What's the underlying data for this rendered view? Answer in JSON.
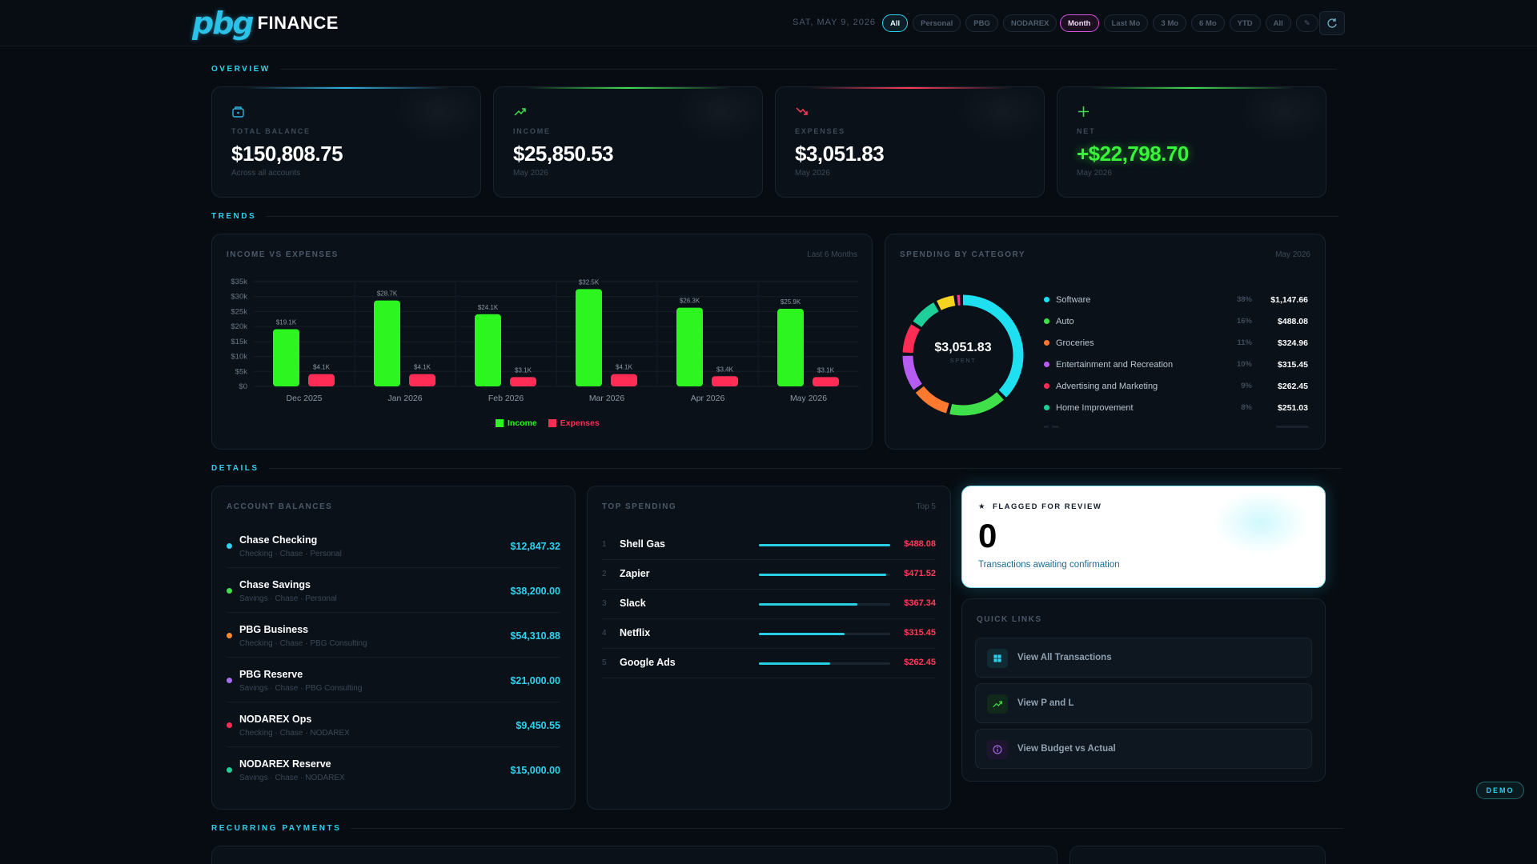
{
  "app": {
    "logo_mark": "pbg",
    "logo_text": "FINANCE"
  },
  "header": {
    "date": "SAT, MAY 9, 2026",
    "entity_filters": [
      {
        "label": "All",
        "active": true
      },
      {
        "label": "Personal",
        "active": false
      },
      {
        "label": "PBG",
        "active": false
      },
      {
        "label": "NODAREX",
        "active": false
      }
    ],
    "period_filters": [
      {
        "label": "Month",
        "active": true
      },
      {
        "label": "Last Mo",
        "active": false
      },
      {
        "label": "3 Mo",
        "active": false
      },
      {
        "label": "6 Mo",
        "active": false
      },
      {
        "label": "YTD",
        "active": false
      },
      {
        "label": "All",
        "active": false
      },
      {
        "label": "✎",
        "active": false
      }
    ],
    "refresh_icon": "refresh-icon"
  },
  "sections": {
    "overview": "OVERVIEW",
    "trends": "TRENDS",
    "details": "DETAILS",
    "recurring": "RECURRING PAYMENTS"
  },
  "overview": [
    {
      "label": "TOTAL BALANCE",
      "value": "$150,808.75",
      "sub": "Across all accounts",
      "icon": "wallet-icon",
      "accent": "#2fb4e0"
    },
    {
      "label": "INCOME",
      "value": "$25,850.53",
      "sub": "May 2026",
      "icon": "trend-up-icon",
      "accent": "#3fe04a"
    },
    {
      "label": "EXPENSES",
      "value": "$3,051.83",
      "sub": "May 2026",
      "icon": "trend-down-icon",
      "accent": "#ff3d5a"
    },
    {
      "label": "NET",
      "value": "+$22,798.70",
      "sub": "May 2026",
      "icon": "plus-icon",
      "accent": "#3fe04a"
    }
  ],
  "income_chart": {
    "title": "INCOME VS EXPENSES",
    "range_label": "Last 6 Months",
    "legend": {
      "income": "Income",
      "expenses": "Expenses"
    }
  },
  "chart_data": {
    "type": "bar",
    "categories": [
      "Dec 2025",
      "Jan 2026",
      "Feb 2026",
      "Mar 2026",
      "Apr 2026",
      "May 2026"
    ],
    "series": [
      {
        "name": "Income",
        "values": [
          19.1,
          28.7,
          24.1,
          32.5,
          26.3,
          25.9
        ],
        "labels": [
          "$19.1K",
          "$28.7K",
          "$24.1K",
          "$32.5K",
          "$26.3K",
          "$25.9K"
        ],
        "color": "#2cf51f"
      },
      {
        "name": "Expenses",
        "values": [
          4.1,
          4.1,
          3.1,
          4.1,
          3.4,
          3.1
        ],
        "labels": [
          "$4.1K",
          "$4.1K",
          "$3.1K",
          "$4.1K",
          "$3.4K",
          "$3.1K"
        ],
        "color": "#ff2d55"
      }
    ],
    "yticks": [
      "$0",
      "$5k",
      "$10k",
      "$15k",
      "$20k",
      "$25k",
      "$30k",
      "$35k"
    ],
    "ylim": [
      0,
      35
    ],
    "grid": true,
    "legend_position": "bottom"
  },
  "spending": {
    "title": "SPENDING BY CATEGORY",
    "period": "May 2026",
    "center_value": "$3,051.83",
    "center_label": "SPENT",
    "categories": [
      {
        "name": "Software",
        "pct": "38%",
        "amount": "$1,147.66",
        "color": "#1fe0f0",
        "share": 37.6
      },
      {
        "name": "Auto",
        "pct": "16%",
        "amount": "$488.08",
        "color": "#3fe04a",
        "share": 16.0
      },
      {
        "name": "Groceries",
        "pct": "11%",
        "amount": "$324.96",
        "color": "#ff7a2e",
        "share": 10.6
      },
      {
        "name": "Entertainment and Recreation",
        "pct": "10%",
        "amount": "$315.45",
        "color": "#b75cf0",
        "share": 10.3
      },
      {
        "name": "Advertising and Marketing",
        "pct": "9%",
        "amount": "$262.45",
        "color": "#ff2d55",
        "share": 8.6
      },
      {
        "name": "Home Improvement",
        "pct": "8%",
        "amount": "$251.03",
        "color": "#1fcf9a",
        "share": 8.2
      }
    ],
    "donut_extra": [
      {
        "color": "#f5d31f",
        "share": 5.5
      },
      {
        "color": "#ff3d8a",
        "share": 1.6
      }
    ]
  },
  "accounts": {
    "title": "ACCOUNT BALANCES",
    "items": [
      {
        "name": "Chase Checking",
        "meta": "Checking · Chase · Personal",
        "amount": "$12,847.32",
        "color": "#2fd2ee"
      },
      {
        "name": "Chase Savings",
        "meta": "Savings · Chase · Personal",
        "amount": "$38,200.00",
        "color": "#3fe04a"
      },
      {
        "name": "PBG Business",
        "meta": "Checking · Chase · PBG Consulting",
        "amount": "$54,310.88",
        "color": "#ff8a2e"
      },
      {
        "name": "PBG Reserve",
        "meta": "Savings · Chase · PBG Consulting",
        "amount": "$21,000.00",
        "color": "#a86cf5"
      },
      {
        "name": "NODAREX Ops",
        "meta": "Checking · Chase · NODAREX",
        "amount": "$9,450.55",
        "color": "#ff2d55"
      },
      {
        "name": "NODAREX Reserve",
        "meta": "Savings · Chase · NODAREX",
        "amount": "$15,000.00",
        "color": "#1fcf9a"
      }
    ]
  },
  "top_spending": {
    "title": "TOP SPENDING",
    "badge": "Top 5",
    "items": [
      {
        "rank": "1",
        "name": "Shell Gas",
        "amount": "$488.08",
        "fraction": 1.0
      },
      {
        "rank": "2",
        "name": "Zapier",
        "amount": "$471.52",
        "fraction": 0.97
      },
      {
        "rank": "3",
        "name": "Slack",
        "amount": "$367.34",
        "fraction": 0.75
      },
      {
        "rank": "4",
        "name": "Netflix",
        "amount": "$315.45",
        "fraction": 0.65
      },
      {
        "rank": "5",
        "name": "Google Ads",
        "amount": "$262.45",
        "fraction": 0.54
      }
    ]
  },
  "flagged": {
    "title": "FLAGGED FOR REVIEW",
    "star": "★",
    "count": "0",
    "sub": "Transactions awaiting confirmation"
  },
  "quick_links": {
    "title": "QUICK LINKS",
    "items": [
      {
        "label": "View All Transactions",
        "icon": "grid-icon",
        "color": "#2fd2ee",
        "bg": "#0f2a32"
      },
      {
        "label": "View P and L",
        "icon": "trend-up-icon",
        "color": "#3fe04a",
        "bg": "#10291a"
      },
      {
        "label": "View Budget vs Actual",
        "icon": "info-icon",
        "color": "#b070f0",
        "bg": "#1d1530"
      }
    ]
  },
  "demo_badge": "DEMO"
}
